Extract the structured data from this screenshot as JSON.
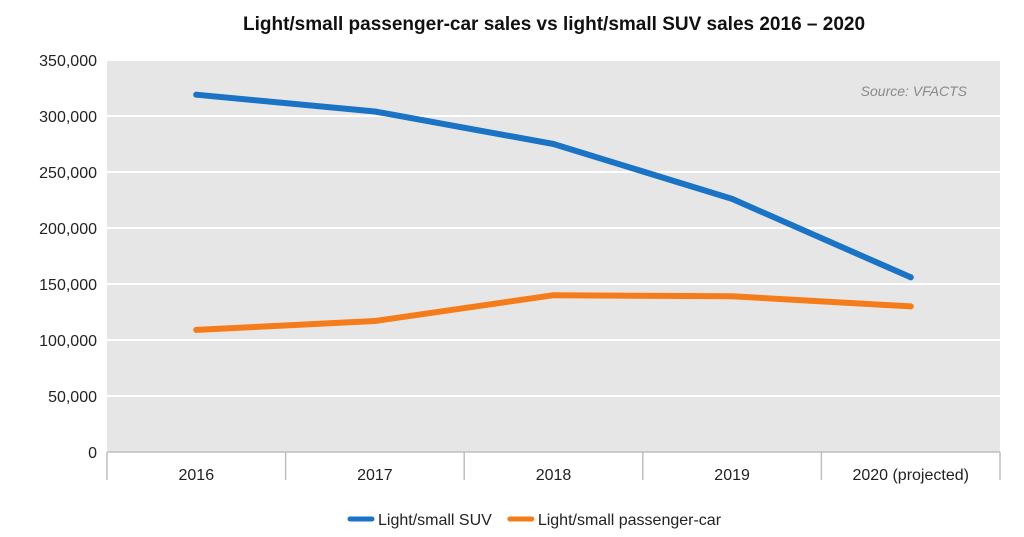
{
  "chart_data": {
    "type": "line",
    "title": "Light/small passenger-car sales vs light/small SUV sales 2016 – 2020",
    "source_note": "Source: VFACTS",
    "categories": [
      "2016",
      "2017",
      "2018",
      "2019",
      "2020 (projected)"
    ],
    "ylim": [
      0,
      350000
    ],
    "yticks": [
      0,
      50000,
      100000,
      150000,
      200000,
      250000,
      300000,
      350000
    ],
    "ytick_labels": [
      "0",
      "50,000",
      "100,000",
      "150,000",
      "200,000",
      "250,000",
      "300,000",
      "350,000"
    ],
    "grid": true,
    "legend_position": "bottom",
    "series": [
      {
        "name": "Light/small SUV",
        "color": "#1a73c4",
        "values": [
          319000,
          304000,
          275000,
          226000,
          156000
        ]
      },
      {
        "name": "Light/small passenger-car",
        "color": "#f57c1a",
        "values": [
          109000,
          117000,
          140000,
          139000,
          130000
        ]
      }
    ]
  }
}
